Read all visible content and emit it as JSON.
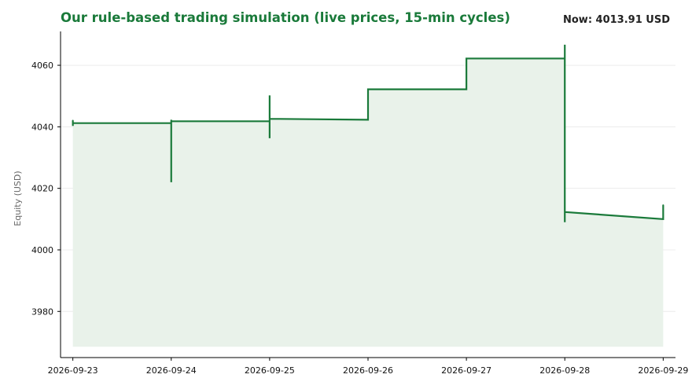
{
  "title": "Our rule-based trading simulation (live prices, 15-min cycles)",
  "now_label": "Now: 4013.91 USD",
  "colors": {
    "line": "#1a7a3a",
    "fill": "#e9f2ea",
    "grid": "#ececec",
    "title": "#1a7a3a"
  },
  "chart_data": {
    "type": "line",
    "title": "Our rule-based trading simulation (live prices, 15-min cycles)",
    "xlabel": "",
    "ylabel": "Equity (USD)",
    "ylim": [
      3965,
      4071
    ],
    "xlim": [
      "2026-09-22T21:00",
      "2026-09-29T03:00"
    ],
    "xticks": [
      "2026-09-23",
      "2026-09-24",
      "2026-09-25",
      "2026-09-26",
      "2026-09-27",
      "2026-09-28",
      "2026-09-29"
    ],
    "yticks": [
      3980,
      4000,
      4020,
      4040,
      4060
    ],
    "grid": "horizontal",
    "fill_baseline": 3968.5,
    "series": [
      {
        "x": [
          "2026-09-23T00:00",
          "2026-09-23T00:00",
          "2026-09-23T00:00",
          "2026-09-24T00:00",
          "2026-09-24T00:00",
          "2026-09-24T00:00",
          "2026-09-24T00:00",
          "2026-09-25T00:00",
          "2026-09-25T00:00",
          "2026-09-25T00:00",
          "2026-09-25T00:00",
          "2026-09-26T00:00",
          "2026-09-26T00:00",
          "2026-09-27T00:00",
          "2026-09-27T00:00",
          "2026-09-28T00:00",
          "2026-09-28T00:00",
          "2026-09-28T00:00",
          "2026-09-28T00:00",
          "2026-09-29T00:00",
          "2026-09-29T00:00"
        ],
        "values": [
          4042,
          4040.3,
          4041.2,
          4041.2,
          4022,
          4042.3,
          4041.8,
          4041.8,
          4036.3,
          4050.2,
          4042.6,
          4042.3,
          4052.2,
          4052.2,
          4062.2,
          4062.2,
          4066.7,
          4009,
          4012.3,
          4010,
          4014.5
        ]
      }
    ]
  }
}
